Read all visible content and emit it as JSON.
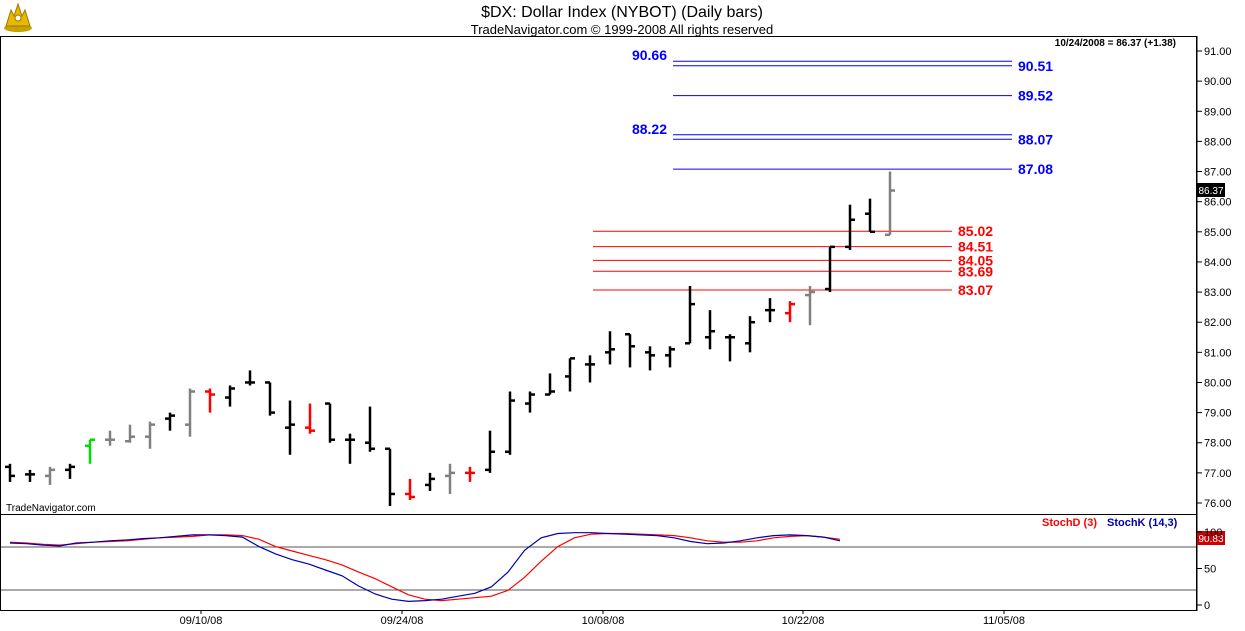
{
  "header": {
    "title": "$DX:  Dollar Index (NYBOT)  (Daily bars)",
    "subtitle": "TradeNavigator.com © 1999-2008 All rights reserved",
    "last_quote": "10/24/2008 = 86.37 (+1.38)",
    "watermark": "TradeNavigator.com"
  },
  "colors": {
    "up": "#00dd00",
    "down": "#ff0000",
    "neutral": "#808080",
    "bar": "#000000",
    "blue_level": "#0000ff",
    "red_level": "#ff0000",
    "stochD": "#ff0000",
    "stochK": "#0000aa",
    "tag_bg": "#cc0000"
  },
  "chart_data": [
    {
      "type": "ohlc",
      "title": "$DX:  Dollar Index (NYBOT)  (Daily bars)",
      "ylim": [
        75.5,
        91.5
      ],
      "y_ticks": [
        "76.00",
        "77.00",
        "78.00",
        "79.00",
        "80.00",
        "81.00",
        "82.00",
        "83.00",
        "84.00",
        "85.00",
        "86.00",
        "87.00",
        "88.00",
        "89.00",
        "90.00",
        "91.00"
      ],
      "x_tick_labels": [
        "09/10/08",
        "09/24/08",
        "10/08/08",
        "10/22/08",
        "11/05/08"
      ],
      "last_price": "86.37",
      "bars": [
        {
          "o": 77.2,
          "h": 77.3,
          "l": 76.7,
          "c": 76.9,
          "color": "black"
        },
        {
          "o": 76.95,
          "h": 77.1,
          "l": 76.7,
          "c": 76.95,
          "color": "black"
        },
        {
          "o": 76.9,
          "h": 77.2,
          "l": 76.6,
          "c": 77.1,
          "color": "gray"
        },
        {
          "o": 77.1,
          "h": 77.3,
          "l": 76.8,
          "c": 77.2,
          "color": "black"
        },
        {
          "o": 77.9,
          "h": 78.1,
          "l": 77.3,
          "c": 78.1,
          "color": "green"
        },
        {
          "o": 78.1,
          "h": 78.4,
          "l": 77.9,
          "c": 78.1,
          "color": "gray"
        },
        {
          "o": 78.05,
          "h": 78.6,
          "l": 78.0,
          "c": 78.2,
          "color": "gray"
        },
        {
          "o": 78.2,
          "h": 78.7,
          "l": 77.8,
          "c": 78.6,
          "color": "gray"
        },
        {
          "o": 78.8,
          "h": 79.0,
          "l": 78.4,
          "c": 78.9,
          "color": "black"
        },
        {
          "o": 78.6,
          "h": 79.8,
          "l": 78.2,
          "c": 79.7,
          "color": "gray"
        },
        {
          "o": 79.7,
          "h": 79.8,
          "l": 79.0,
          "c": 79.6,
          "color": "red"
        },
        {
          "o": 79.5,
          "h": 79.9,
          "l": 79.2,
          "c": 79.8,
          "color": "black"
        },
        {
          "o": 80.0,
          "h": 80.4,
          "l": 79.9,
          "c": 80.0,
          "color": "black"
        },
        {
          "o": 80.0,
          "h": 80.0,
          "l": 78.9,
          "c": 79.0,
          "color": "black"
        },
        {
          "o": 78.5,
          "h": 79.4,
          "l": 77.6,
          "c": 78.6,
          "color": "black"
        },
        {
          "o": 78.5,
          "h": 79.3,
          "l": 78.3,
          "c": 78.4,
          "color": "red"
        },
        {
          "o": 79.3,
          "h": 79.3,
          "l": 78.0,
          "c": 78.1,
          "color": "black"
        },
        {
          "o": 78.1,
          "h": 78.3,
          "l": 77.3,
          "c": 78.1,
          "color": "black"
        },
        {
          "o": 78.0,
          "h": 79.2,
          "l": 77.7,
          "c": 77.8,
          "color": "black"
        },
        {
          "o": 77.8,
          "h": 77.8,
          "l": 75.9,
          "c": 76.3,
          "color": "black"
        },
        {
          "o": 76.3,
          "h": 76.8,
          "l": 76.1,
          "c": 76.2,
          "color": "red"
        },
        {
          "o": 76.6,
          "h": 77.0,
          "l": 76.4,
          "c": 76.8,
          "color": "black"
        },
        {
          "o": 76.9,
          "h": 77.3,
          "l": 76.3,
          "c": 77.0,
          "color": "gray"
        },
        {
          "o": 77.0,
          "h": 77.2,
          "l": 76.7,
          "c": 77.0,
          "color": "red"
        },
        {
          "o": 77.1,
          "h": 78.4,
          "l": 77.0,
          "c": 77.7,
          "color": "black"
        },
        {
          "o": 77.7,
          "h": 79.7,
          "l": 77.6,
          "c": 79.4,
          "color": "black"
        },
        {
          "o": 79.3,
          "h": 79.7,
          "l": 79.0,
          "c": 79.6,
          "color": "black"
        },
        {
          "o": 79.6,
          "h": 80.3,
          "l": 79.6,
          "c": 79.7,
          "color": "black"
        },
        {
          "o": 80.2,
          "h": 80.8,
          "l": 79.7,
          "c": 80.8,
          "color": "black"
        },
        {
          "o": 80.6,
          "h": 80.9,
          "l": 80.0,
          "c": 80.6,
          "color": "black"
        },
        {
          "o": 81.0,
          "h": 81.7,
          "l": 80.6,
          "c": 81.1,
          "color": "black"
        },
        {
          "o": 81.6,
          "h": 81.6,
          "l": 80.5,
          "c": 81.2,
          "color": "black"
        },
        {
          "o": 81.0,
          "h": 81.2,
          "l": 80.4,
          "c": 80.9,
          "color": "black"
        },
        {
          "o": 80.9,
          "h": 81.2,
          "l": 80.5,
          "c": 81.1,
          "color": "black"
        },
        {
          "o": 81.3,
          "h": 83.2,
          "l": 81.3,
          "c": 82.6,
          "color": "black"
        },
        {
          "o": 81.5,
          "h": 82.4,
          "l": 81.1,
          "c": 81.7,
          "color": "black"
        },
        {
          "o": 81.5,
          "h": 81.6,
          "l": 80.7,
          "c": 81.5,
          "color": "black"
        },
        {
          "o": 81.3,
          "h": 82.2,
          "l": 81.0,
          "c": 82.0,
          "color": "black"
        },
        {
          "o": 82.4,
          "h": 82.8,
          "l": 82.0,
          "c": 82.4,
          "color": "black"
        },
        {
          "o": 82.3,
          "h": 82.7,
          "l": 82.0,
          "c": 82.6,
          "color": "red"
        },
        {
          "o": 82.9,
          "h": 83.2,
          "l": 81.9,
          "c": 83.0,
          "color": "gray"
        },
        {
          "o": 83.1,
          "h": 84.5,
          "l": 83.0,
          "c": 84.5,
          "color": "black"
        },
        {
          "o": 84.5,
          "h": 85.9,
          "l": 84.4,
          "c": 85.4,
          "color": "black"
        },
        {
          "o": 85.6,
          "h": 86.1,
          "l": 85.0,
          "c": 85.0,
          "color": "black"
        },
        {
          "o": 84.9,
          "h": 87.0,
          "l": 84.9,
          "c": 86.37,
          "color": "gray"
        }
      ],
      "levels": [
        {
          "value": 90.66,
          "label": "90.66",
          "side": "left",
          "color": "blue"
        },
        {
          "value": 90.51,
          "label": "90.51",
          "side": "right",
          "color": "blue"
        },
        {
          "value": 89.52,
          "label": "89.52",
          "side": "right",
          "color": "blue"
        },
        {
          "value": 88.22,
          "label": "88.22",
          "side": "left",
          "color": "blue"
        },
        {
          "value": 88.07,
          "label": "88.07",
          "side": "right",
          "color": "blue"
        },
        {
          "value": 87.08,
          "label": "87.08",
          "side": "right",
          "color": "blue"
        },
        {
          "value": 85.02,
          "label": "85.02",
          "side": "right",
          "color": "red"
        },
        {
          "value": 84.51,
          "label": "84.51",
          "side": "right",
          "color": "red"
        },
        {
          "value": 84.05,
          "label": "84.05",
          "side": "right",
          "color": "red"
        },
        {
          "value": 83.69,
          "label": "83.69",
          "side": "right",
          "color": "red"
        },
        {
          "value": 83.07,
          "label": "83.07",
          "side": "right",
          "color": "red"
        }
      ]
    },
    {
      "type": "line",
      "ylim": [
        0,
        100
      ],
      "y_ticks": [
        "0",
        "50",
        "100"
      ],
      "reference_lines": [
        20,
        80
      ],
      "last_value": "90.83",
      "legend": [
        "StochD (3)",
        "StochK (14,3)"
      ],
      "series": [
        {
          "name": "StochD (3)",
          "color": "red",
          "values": [
            86,
            85,
            83,
            82,
            84,
            86,
            87,
            88,
            90,
            92,
            93,
            94,
            96,
            96,
            95,
            90,
            80,
            74,
            68,
            62,
            55,
            45,
            36,
            25,
            14,
            8,
            6,
            8,
            10,
            12,
            20,
            38,
            60,
            80,
            92,
            97,
            98,
            98,
            97,
            96,
            95,
            92,
            88,
            86,
            86,
            88,
            92,
            94,
            95,
            93,
            90
          ]
        },
        {
          "name": "StochK (14,3)",
          "color": "blue",
          "values": [
            85,
            84,
            82,
            81,
            85,
            86,
            88,
            89,
            91,
            92,
            94,
            96,
            96,
            95,
            93,
            80,
            70,
            62,
            56,
            48,
            40,
            26,
            15,
            8,
            5,
            6,
            8,
            12,
            16,
            25,
            45,
            75,
            92,
            98,
            99,
            99,
            98,
            97,
            96,
            95,
            92,
            87,
            84,
            85,
            88,
            92,
            95,
            96,
            95,
            93,
            88
          ]
        }
      ]
    }
  ]
}
